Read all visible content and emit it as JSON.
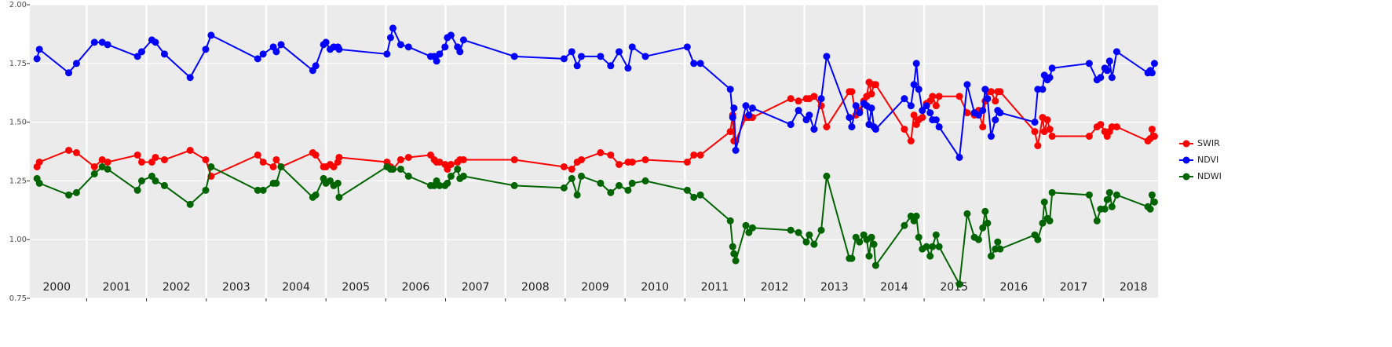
{
  "chart_data": {
    "type": "line",
    "x": [
      2000.17,
      2000.21,
      2000.7,
      2000.83,
      2001.13,
      2001.26,
      2001.35,
      2001.85,
      2001.92,
      2002.09,
      2002.15,
      2002.3,
      2002.73,
      2002.99,
      2003.08,
      2003.86,
      2003.95,
      2004.12,
      2004.17,
      2004.25,
      2004.78,
      2004.83,
      2004.96,
      2005.0,
      2005.07,
      2005.13,
      2005.2,
      2005.22,
      2006.02,
      2006.08,
      2006.12,
      2006.25,
      2006.38,
      2006.75,
      2006.81,
      2006.85,
      2006.9,
      2006.99,
      2007.03,
      2007.09,
      2007.2,
      2007.24,
      2007.3,
      2008.15,
      2008.98,
      2009.11,
      2009.2,
      2009.27,
      2009.59,
      2009.76,
      2009.9,
      2010.05,
      2010.12,
      2010.34,
      2011.04,
      2011.15,
      2011.26,
      2011.76,
      2011.8,
      2011.82,
      2011.85,
      2012.02,
      2012.07,
      2012.13,
      2012.77,
      2012.9,
      2013.03,
      2013.08,
      2013.16,
      2013.28,
      2013.37,
      2013.75,
      2013.79,
      2013.86,
      2013.92,
      2013.99,
      2014.04,
      2014.08,
      2014.12,
      2014.16,
      2014.19,
      2014.67,
      2014.78,
      2014.83,
      2014.87,
      2014.91,
      2014.97,
      2015.04,
      2015.1,
      2015.14,
      2015.2,
      2015.25,
      2015.59,
      2015.72,
      2015.84,
      2015.91,
      2015.98,
      2016.02,
      2016.06,
      2016.12,
      2016.19,
      2016.23,
      2016.27,
      2016.85,
      2016.9,
      2016.98,
      2017.01,
      2017.06,
      2017.1,
      2017.14,
      2017.76,
      2017.89,
      2017.95,
      2018.02,
      2018.06,
      2018.1,
      2018.14,
      2018.22,
      2018.74,
      2018.78,
      2018.81,
      2018.85
    ],
    "series": [
      {
        "name": "SWIR",
        "color": "#ff0000",
        "values": [
          1.31,
          1.33,
          1.38,
          1.37,
          1.31,
          1.34,
          1.33,
          1.36,
          1.33,
          1.33,
          1.35,
          1.34,
          1.38,
          1.34,
          1.27,
          1.36,
          1.33,
          1.31,
          1.34,
          1.31,
          1.37,
          1.36,
          1.31,
          1.31,
          1.32,
          1.31,
          1.33,
          1.35,
          1.33,
          1.31,
          1.3,
          1.34,
          1.35,
          1.36,
          1.34,
          1.33,
          1.33,
          1.32,
          1.3,
          1.32,
          1.33,
          1.34,
          1.34,
          1.34,
          1.31,
          1.3,
          1.33,
          1.34,
          1.37,
          1.36,
          1.32,
          1.33,
          1.33,
          1.34,
          1.33,
          1.36,
          1.36,
          1.46,
          1.53,
          1.42,
          1.42,
          1.52,
          1.52,
          1.52,
          1.6,
          1.59,
          1.6,
          1.6,
          1.61,
          1.57,
          1.48,
          1.63,
          1.63,
          1.53,
          1.55,
          1.59,
          1.61,
          1.67,
          1.62,
          1.66,
          1.66,
          1.47,
          1.42,
          1.53,
          1.49,
          1.51,
          1.52,
          1.58,
          1.59,
          1.61,
          1.57,
          1.61,
          1.61,
          1.54,
          1.53,
          1.55,
          1.48,
          1.59,
          1.63,
          1.63,
          1.59,
          1.63,
          1.63,
          1.46,
          1.4,
          1.52,
          1.46,
          1.51,
          1.47,
          1.44,
          1.44,
          1.48,
          1.49,
          1.46,
          1.44,
          1.46,
          1.48,
          1.48,
          1.42,
          1.43,
          1.47,
          1.44
        ]
      },
      {
        "name": "NDVI",
        "color": "#0000ff",
        "values": [
          1.77,
          1.81,
          1.71,
          1.75,
          1.84,
          1.84,
          1.83,
          1.78,
          1.8,
          1.85,
          1.84,
          1.79,
          1.69,
          1.81,
          1.87,
          1.77,
          1.79,
          1.82,
          1.8,
          1.83,
          1.72,
          1.74,
          1.83,
          1.84,
          1.81,
          1.82,
          1.82,
          1.81,
          1.79,
          1.86,
          1.9,
          1.83,
          1.82,
          1.78,
          1.78,
          1.76,
          1.79,
          1.82,
          1.86,
          1.87,
          1.82,
          1.8,
          1.85,
          1.78,
          1.77,
          1.8,
          1.74,
          1.78,
          1.78,
          1.74,
          1.8,
          1.73,
          1.82,
          1.78,
          1.82,
          1.75,
          1.75,
          1.64,
          1.52,
          1.56,
          1.38,
          1.57,
          1.53,
          1.56,
          1.49,
          1.55,
          1.51,
          1.53,
          1.47,
          1.6,
          1.78,
          1.52,
          1.48,
          1.57,
          1.54,
          1.58,
          1.57,
          1.49,
          1.56,
          1.48,
          1.47,
          1.6,
          1.57,
          1.66,
          1.75,
          1.64,
          1.55,
          1.57,
          1.54,
          1.51,
          1.51,
          1.48,
          1.35,
          1.66,
          1.54,
          1.53,
          1.55,
          1.64,
          1.6,
          1.44,
          1.51,
          1.55,
          1.54,
          1.5,
          1.64,
          1.64,
          1.7,
          1.68,
          1.69,
          1.73,
          1.75,
          1.68,
          1.69,
          1.73,
          1.72,
          1.76,
          1.69,
          1.8,
          1.71,
          1.72,
          1.71,
          1.75
        ]
      },
      {
        "name": "NDWI",
        "color": "#006400",
        "values": [
          1.26,
          1.24,
          1.19,
          1.2,
          1.28,
          1.31,
          1.3,
          1.21,
          1.25,
          1.27,
          1.25,
          1.23,
          1.15,
          1.21,
          1.31,
          1.21,
          1.21,
          1.24,
          1.24,
          1.31,
          1.18,
          1.19,
          1.26,
          1.24,
          1.25,
          1.23,
          1.24,
          1.18,
          1.31,
          1.3,
          1.3,
          1.3,
          1.27,
          1.23,
          1.23,
          1.25,
          1.23,
          1.23,
          1.24,
          1.27,
          1.3,
          1.26,
          1.27,
          1.23,
          1.22,
          1.26,
          1.19,
          1.27,
          1.24,
          1.2,
          1.23,
          1.21,
          1.24,
          1.25,
          1.21,
          1.18,
          1.19,
          1.08,
          0.97,
          0.94,
          0.91,
          1.06,
          1.03,
          1.05,
          1.04,
          1.03,
          0.99,
          1.02,
          0.98,
          1.04,
          1.27,
          0.92,
          0.92,
          1.01,
          0.99,
          1.02,
          1.0,
          0.93,
          1.01,
          0.98,
          0.89,
          1.06,
          1.1,
          1.08,
          1.1,
          1.01,
          0.96,
          0.97,
          0.93,
          0.97,
          1.02,
          0.97,
          0.81,
          1.11,
          1.01,
          1.0,
          1.05,
          1.12,
          1.07,
          0.93,
          0.96,
          0.99,
          0.96,
          1.02,
          1.0,
          1.07,
          1.16,
          1.09,
          1.08,
          1.2,
          1.19,
          1.08,
          1.13,
          1.13,
          1.17,
          1.2,
          1.14,
          1.19,
          1.14,
          1.13,
          1.19,
          1.16
        ]
      }
    ],
    "xlim": [
      2000.05,
      2018.91
    ],
    "xticks": [
      2001,
      2002,
      2003,
      2004,
      2005,
      2006,
      2007,
      2008,
      2009,
      2010,
      2011,
      2012,
      2013,
      2014,
      2015,
      2016,
      2017,
      2018
    ],
    "ylim": [
      0.75,
      2.0
    ],
    "yticks": [
      {
        "value": 0.75,
        "label": "0.75"
      },
      {
        "value": 1.0,
        "label": "1.00"
      },
      {
        "value": 1.25,
        "label": "1.25"
      },
      {
        "value": 1.5,
        "label": "1.50"
      },
      {
        "value": 1.75,
        "label": "1.75"
      },
      {
        "value": 2.0,
        "label": "2.00"
      }
    ],
    "annotations": [
      {
        "text": "2000",
        "x": 2000.5
      },
      {
        "text": "2001",
        "x": 2001.5
      },
      {
        "text": "2002",
        "x": 2002.5
      },
      {
        "text": "2003",
        "x": 2003.5
      },
      {
        "text": "2004",
        "x": 2004.5
      },
      {
        "text": "2005",
        "x": 2005.5
      },
      {
        "text": "2006",
        "x": 2006.5
      },
      {
        "text": "2007",
        "x": 2007.5
      },
      {
        "text": "2008",
        "x": 2008.5
      },
      {
        "text": "2009",
        "x": 2009.5
      },
      {
        "text": "2010",
        "x": 2010.5
      },
      {
        "text": "2011",
        "x": 2011.5
      },
      {
        "text": "2012",
        "x": 2012.5
      },
      {
        "text": "2013",
        "x": 2013.5
      },
      {
        "text": "2014",
        "x": 2014.5
      },
      {
        "text": "2015",
        "x": 2015.5
      },
      {
        "text": "2016",
        "x": 2016.5
      },
      {
        "text": "2017",
        "x": 2017.5
      },
      {
        "text": "2018",
        "x": 2018.5
      }
    ],
    "grid": true,
    "legend": "right"
  }
}
